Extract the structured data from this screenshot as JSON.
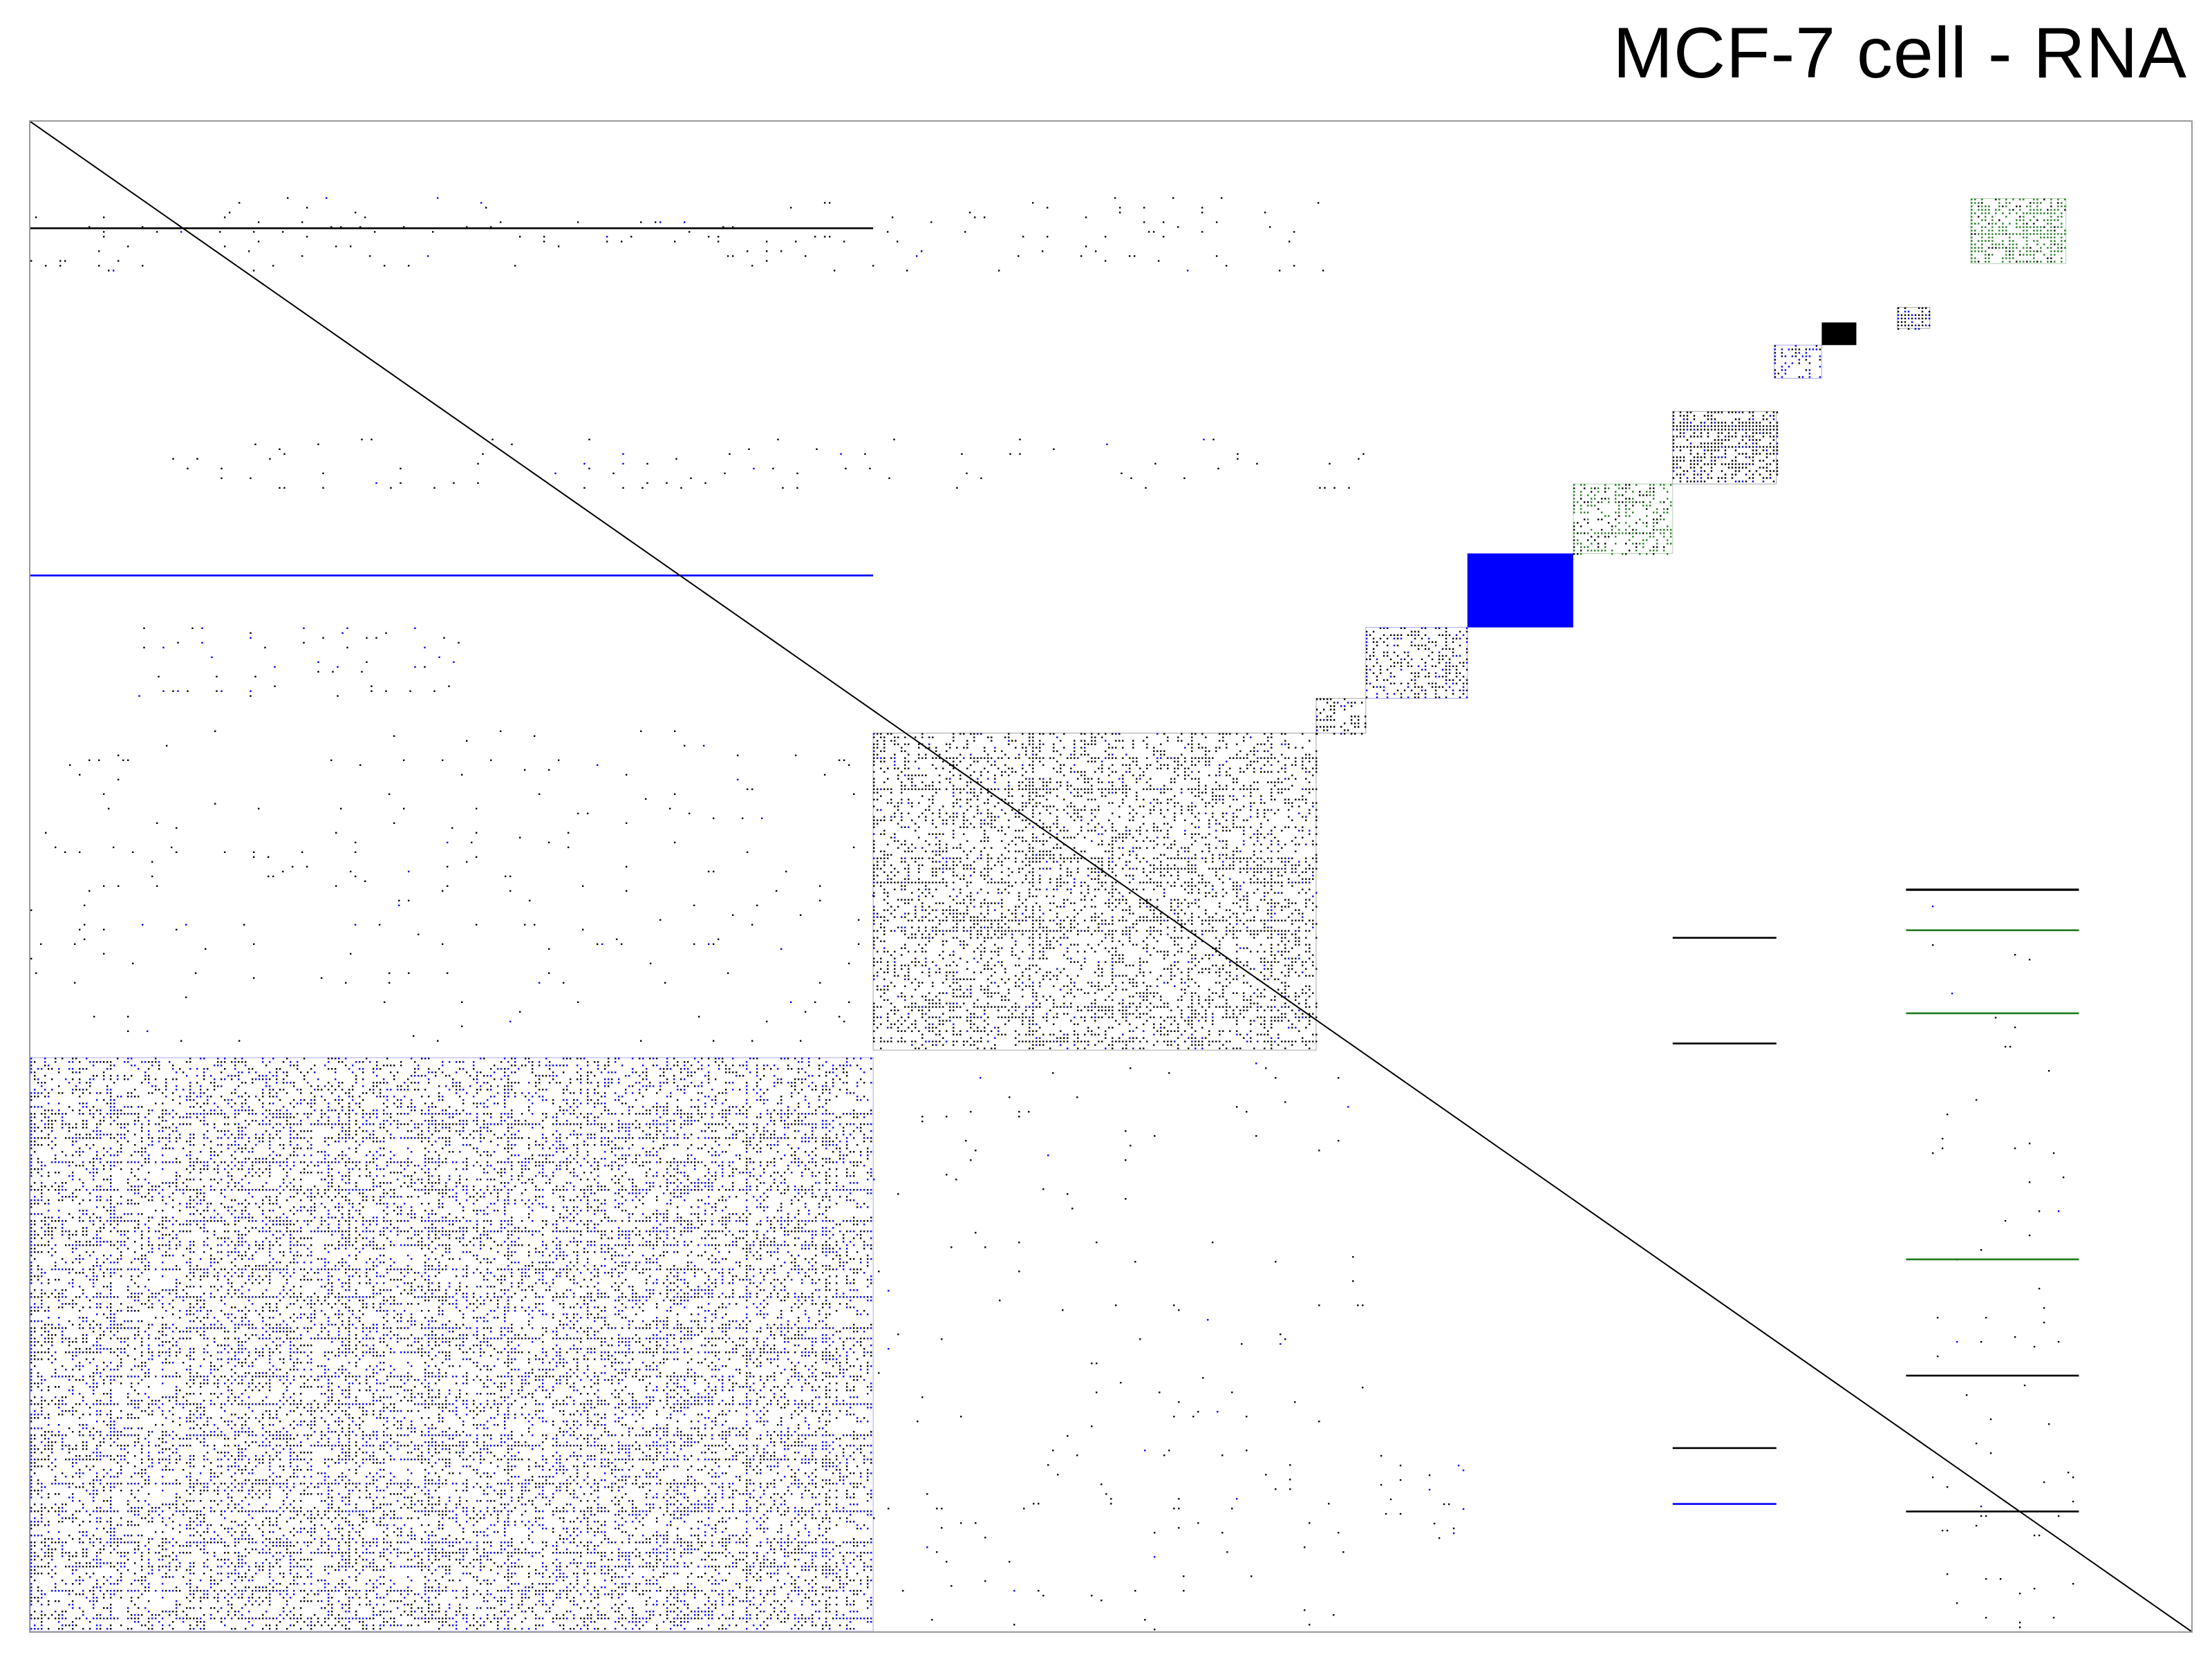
{
  "title": "MCF-7 cell - RNA",
  "colors": {
    "black": "#000000",
    "blue": "#0000ff",
    "green": "#1f7a1f",
    "border": "#9a9a9a"
  },
  "chart_data": {
    "type": "heatmap",
    "title": "MCF-7 cell - RNA",
    "xlabel": "",
    "ylabel": "",
    "axis_range": [
      0,
      1
    ],
    "grid": false,
    "legend": "none",
    "diagonal": {
      "from": [
        0,
        1
      ],
      "to": [
        1,
        0
      ]
    },
    "blocks": [
      {
        "name": "domain-1",
        "x0": 0.0,
        "x1": 0.39,
        "y0": 0.0,
        "y1": 0.38,
        "density": 0.55,
        "color": "#0000ff",
        "mix": 0.55,
        "pattern": "dense"
      },
      {
        "name": "domain-2",
        "x0": 0.39,
        "x1": 0.595,
        "y0": 0.385,
        "y1": 0.595,
        "density": 0.55,
        "color": "#000000",
        "mix": 0.12,
        "pattern": "dense"
      },
      {
        "name": "domain-3",
        "x0": 0.595,
        "x1": 0.618,
        "y0": 0.595,
        "y1": 0.618,
        "density": 0.6,
        "color": "#000000",
        "mix": 0.1,
        "pattern": "dense"
      },
      {
        "name": "domain-4",
        "x0": 0.618,
        "x1": 0.665,
        "y0": 0.618,
        "y1": 0.665,
        "density": 0.7,
        "color": "#0000ff",
        "mix": 0.8,
        "pattern": "dense"
      },
      {
        "name": "domain-5",
        "x0": 0.665,
        "x1": 0.714,
        "y0": 0.665,
        "y1": 0.714,
        "density": 1.0,
        "color": "#0000ff",
        "mix": 0.0,
        "pattern": "solid"
      },
      {
        "name": "domain-6",
        "x0": 0.714,
        "x1": 0.76,
        "y0": 0.714,
        "y1": 0.76,
        "density": 0.75,
        "color": "#1f7a1f",
        "mix": 0.3,
        "pattern": "dense"
      },
      {
        "name": "domain-7",
        "x0": 0.76,
        "x1": 0.808,
        "y0": 0.76,
        "y1": 0.808,
        "density": 0.85,
        "color": "#000000",
        "mix": 0.15,
        "pattern": "dense"
      },
      {
        "name": "domain-8",
        "x0": 0.807,
        "x1": 0.829,
        "y0": 0.83,
        "y1": 0.852,
        "density": 0.55,
        "color": "#0000ff",
        "mix": 0.4,
        "pattern": "dense"
      },
      {
        "name": "domain-9",
        "x0": 0.829,
        "x1": 0.845,
        "y0": 0.852,
        "y1": 0.867,
        "density": 1.0,
        "color": "#000000",
        "mix": 0.0,
        "pattern": "solid"
      },
      {
        "name": "domain-10",
        "x0": 0.864,
        "x1": 0.879,
        "y0": 0.863,
        "y1": 0.877,
        "density": 0.8,
        "color": "#000000",
        "mix": 0.3,
        "pattern": "dense"
      },
      {
        "name": "domain-11",
        "x0": 0.898,
        "x1": 0.942,
        "y0": 0.906,
        "y1": 0.949,
        "density": 0.95,
        "color": "#1f7a1f",
        "mix": 0.1,
        "pattern": "dense"
      },
      {
        "name": "offdiag-top-left",
        "x0": 0.0,
        "x1": 0.6,
        "y0": 0.9,
        "y1": 0.95,
        "density": 0.05,
        "color": "#000000",
        "mix": 0.1,
        "pattern": "sparse"
      },
      {
        "name": "offdiag-upper-mid",
        "x0": 0.05,
        "x1": 0.62,
        "y0": 0.755,
        "y1": 0.79,
        "density": 0.04,
        "color": "#000000",
        "mix": 0.1,
        "pattern": "sparse"
      },
      {
        "name": "offdiag-left-mid",
        "x0": 0.05,
        "x1": 0.2,
        "y0": 0.62,
        "y1": 0.665,
        "density": 0.08,
        "color": "#0000ff",
        "mix": 0.7,
        "pattern": "sparse"
      },
      {
        "name": "offdiag-left-below-d2",
        "x0": 0.0,
        "x1": 0.39,
        "y0": 0.39,
        "y1": 0.6,
        "density": 0.025,
        "color": "#000000",
        "mix": 0.1,
        "pattern": "sparse"
      },
      {
        "name": "offdiag-right-column",
        "x0": 0.88,
        "x1": 0.945,
        "y0": 0.0,
        "y1": 0.5,
        "density": 0.02,
        "color": "#000000",
        "mix": 0.1,
        "pattern": "sparse"
      },
      {
        "name": "offdiag-mid-bottom",
        "x0": 0.39,
        "x1": 0.62,
        "y0": 0.0,
        "y1": 0.38,
        "density": 0.02,
        "color": "#000000",
        "mix": 0.1,
        "pattern": "sparse"
      },
      {
        "name": "offdiag-d4-bottom",
        "x0": 0.618,
        "x1": 0.665,
        "y0": 0.06,
        "y1": 0.12,
        "density": 0.06,
        "color": "#0000ff",
        "mix": 0.7,
        "pattern": "sparse"
      }
    ],
    "bands": [
      {
        "x0": 0.868,
        "x1": 0.948,
        "y": 0.492,
        "thickness": 0.0015,
        "color": "#000000"
      },
      {
        "x0": 0.868,
        "x1": 0.948,
        "y": 0.465,
        "thickness": 0.0012,
        "color": "#1f7a1f"
      },
      {
        "x0": 0.868,
        "x1": 0.948,
        "y": 0.41,
        "thickness": 0.0012,
        "color": "#1f7a1f"
      },
      {
        "x0": 0.868,
        "x1": 0.948,
        "y": 0.247,
        "thickness": 0.0012,
        "color": "#1f7a1f"
      },
      {
        "x0": 0.868,
        "x1": 0.948,
        "y": 0.17,
        "thickness": 0.0012,
        "color": "#000000"
      },
      {
        "x0": 0.868,
        "x1": 0.948,
        "y": 0.08,
        "thickness": 0.0012,
        "color": "#000000"
      },
      {
        "x0": 0.76,
        "x1": 0.808,
        "y": 0.46,
        "thickness": 0.0012,
        "color": "#000000"
      },
      {
        "x0": 0.76,
        "x1": 0.808,
        "y": 0.39,
        "thickness": 0.0012,
        "color": "#000000"
      },
      {
        "x0": 0.76,
        "x1": 0.808,
        "y": 0.122,
        "thickness": 0.0012,
        "color": "#000000"
      },
      {
        "x0": 0.76,
        "x1": 0.808,
        "y": 0.085,
        "thickness": 0.0012,
        "color": "#0000ff"
      },
      {
        "x0": 0.0,
        "x1": 0.39,
        "y": 0.93,
        "thickness": 0.0012,
        "color": "#000000"
      },
      {
        "x0": 0.0,
        "x1": 0.39,
        "y": 0.7,
        "thickness": 0.0012,
        "color": "#0000ff"
      }
    ]
  }
}
